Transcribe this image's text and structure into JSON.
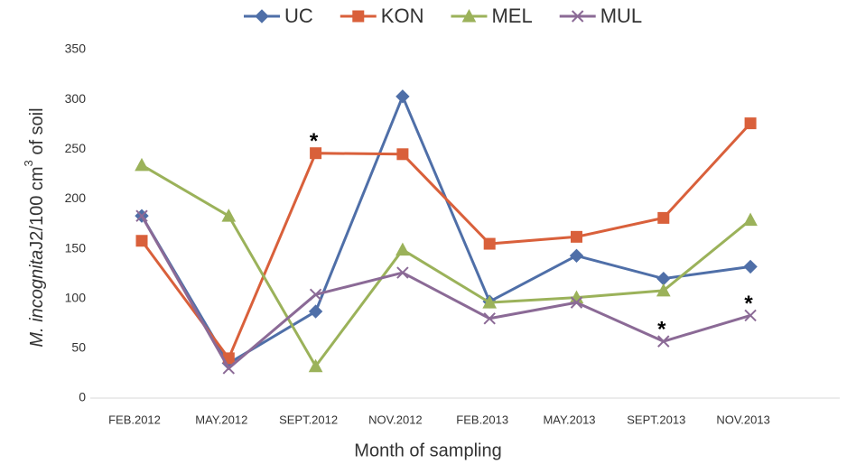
{
  "chart_data": {
    "type": "line",
    "x_label": "Month of sampling",
    "y_label": [
      "M. incognita",
      "J2/100 cm",
      "3",
      " of soil"
    ],
    "categories": [
      "FEB.2012",
      "MAY.2012",
      "SEPT.2012",
      "NOV.2012",
      "FEB.2013",
      "MAY.2013",
      "SEPT.2013",
      "NOV.2013"
    ],
    "series": [
      {
        "name": "UC",
        "color": "#4f6fa8",
        "marker": "diamond",
        "values": [
          183,
          35,
          87,
          303,
          97,
          143,
          120,
          132
        ]
      },
      {
        "name": "KON",
        "color": "#d9603b",
        "marker": "square",
        "values": [
          158,
          40,
          246,
          245,
          155,
          162,
          181,
          276
        ]
      },
      {
        "name": "MEL",
        "color": "#9bb25a",
        "marker": "triangle",
        "values": [
          234,
          183,
          32,
          149,
          96,
          101,
          108,
          179
        ]
      },
      {
        "name": "MUL",
        "color": "#8b6a96",
        "marker": "x",
        "values": [
          183,
          30,
          104,
          126,
          80,
          96,
          57,
          83
        ]
      }
    ],
    "annotations": [
      {
        "text": "*",
        "category": 2,
        "series": 1
      },
      {
        "text": "*",
        "category": 6,
        "series": 3
      },
      {
        "text": "*",
        "category": 7,
        "series": 3
      }
    ],
    "ylim": [
      0,
      350
    ],
    "yticks": [
      0,
      50,
      100,
      150,
      200,
      250,
      300,
      350
    ],
    "grid": false,
    "legend": "top"
  }
}
